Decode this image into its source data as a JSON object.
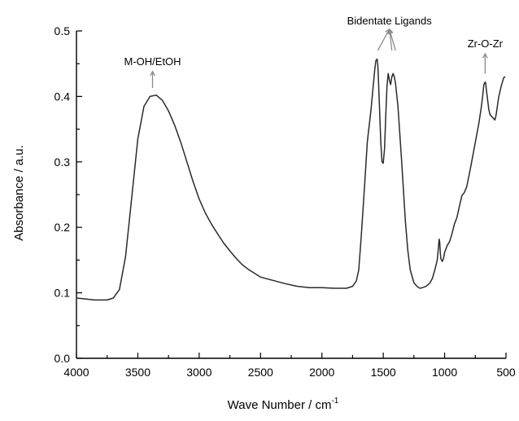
{
  "chart_data": {
    "type": "line",
    "title": "",
    "xlabel": "Wave Number / cm",
    "xlabel_superscript": "-1",
    "ylabel": "Absorbance / a.u.",
    "xlim": [
      4000,
      500
    ],
    "ylim": [
      0.0,
      0.5
    ],
    "x_reversed": true,
    "grid": false,
    "legend": "none",
    "line_color": "#2a2a2a",
    "x_ticks": [
      4000,
      3500,
      3000,
      2500,
      2000,
      1500,
      1000,
      500
    ],
    "x_tick_labels": [
      "4000",
      "3500",
      "3000",
      "2500",
      "2000",
      "1500",
      "1000",
      "500"
    ],
    "y_ticks": [
      0.0,
      0.1,
      0.2,
      0.3,
      0.4,
      0.5
    ],
    "y_tick_labels": [
      "0.0",
      "0.1",
      "0.2",
      "0.3",
      "0.4",
      "0.5"
    ],
    "series": [
      {
        "values_x": [
          4000,
          3950,
          3900,
          3850,
          3800,
          3750,
          3700,
          3650,
          3600,
          3550,
          3500,
          3450,
          3400,
          3350,
          3300,
          3250,
          3200,
          3150,
          3100,
          3050,
          3000,
          2950,
          2900,
          2850,
          2800,
          2750,
          2700,
          2650,
          2600,
          2550,
          2500,
          2400,
          2300,
          2200,
          2100,
          2000,
          1900,
          1800,
          1750,
          1720,
          1700,
          1680,
          1650,
          1630,
          1600,
          1590,
          1580,
          1570,
          1560,
          1550,
          1545,
          1540,
          1530,
          1520,
          1510,
          1500,
          1490,
          1480,
          1470,
          1460,
          1450,
          1440,
          1430,
          1420,
          1410,
          1400,
          1380,
          1350,
          1320,
          1300,
          1280,
          1250,
          1220,
          1200,
          1180,
          1150,
          1120,
          1100,
          1080,
          1060,
          1050,
          1045,
          1040,
          1035,
          1030,
          1025,
          1020,
          1010,
          1000,
          980,
          960,
          940,
          920,
          900,
          880,
          860,
          840,
          820,
          800,
          780,
          760,
          740,
          720,
          700,
          690,
          680,
          670,
          665,
          660,
          650,
          640,
          630,
          620,
          610,
          600,
          590,
          580,
          570,
          560,
          540,
          520,
          510
        ],
        "values_y": [
          0.092,
          0.091,
          0.09,
          0.089,
          0.089,
          0.089,
          0.092,
          0.105,
          0.155,
          0.245,
          0.335,
          0.385,
          0.4,
          0.402,
          0.394,
          0.378,
          0.356,
          0.33,
          0.3,
          0.27,
          0.243,
          0.222,
          0.205,
          0.19,
          0.176,
          0.164,
          0.153,
          0.143,
          0.136,
          0.13,
          0.124,
          0.119,
          0.114,
          0.11,
          0.108,
          0.108,
          0.107,
          0.107,
          0.11,
          0.118,
          0.135,
          0.185,
          0.27,
          0.33,
          0.38,
          0.4,
          0.42,
          0.44,
          0.455,
          0.457,
          0.448,
          0.43,
          0.38,
          0.33,
          0.3,
          0.298,
          0.32,
          0.37,
          0.415,
          0.435,
          0.425,
          0.418,
          0.43,
          0.435,
          0.43,
          0.42,
          0.385,
          0.3,
          0.21,
          0.165,
          0.135,
          0.115,
          0.109,
          0.107,
          0.108,
          0.11,
          0.115,
          0.122,
          0.135,
          0.15,
          0.17,
          0.182,
          0.178,
          0.16,
          0.152,
          0.15,
          0.148,
          0.152,
          0.162,
          0.172,
          0.178,
          0.19,
          0.205,
          0.215,
          0.232,
          0.248,
          0.253,
          0.262,
          0.28,
          0.3,
          0.32,
          0.34,
          0.36,
          0.385,
          0.4,
          0.418,
          0.422,
          0.42,
          0.41,
          0.395,
          0.38,
          0.372,
          0.37,
          0.368,
          0.366,
          0.364,
          0.372,
          0.385,
          0.398,
          0.415,
          0.428,
          0.43
        ]
      }
    ],
    "annotations": [
      {
        "text": "M-OH/EtOH",
        "x": 3380,
        "y": 0.403,
        "label_y": 0.448
      },
      {
        "text": "Bidentate Ligands",
        "x": 1450,
        "y": 0.439,
        "label_y": 0.51,
        "targets": [
          1545,
          1430,
          1400
        ]
      },
      {
        "text": "Zr-O-Zr",
        "x": 670,
        "y": 0.425,
        "label_y": 0.475
      }
    ]
  }
}
